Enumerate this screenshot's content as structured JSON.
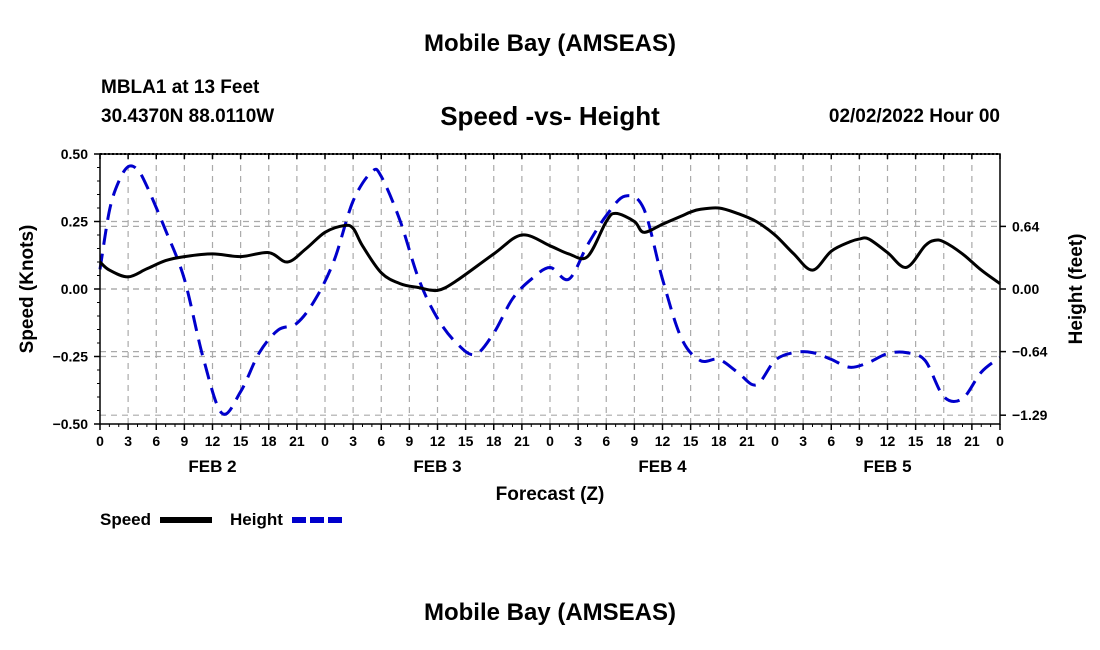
{
  "header": {
    "title": "Mobile Bay (AMSEAS)",
    "station": "MBLA1 at 13 Feet",
    "coords": "30.4370N  88.0110W",
    "subtitle": "Speed -vs- Height",
    "issued": "02/02/2022 Hour 00"
  },
  "footer": {
    "title": "Mobile Bay (AMSEAS)"
  },
  "chart_data": {
    "type": "line",
    "xlabel": "Forecast (Z)",
    "ylabel": "Speed (Knots)",
    "y2label": "Height (feet)",
    "xlim": [
      0,
      96
    ],
    "ylim": [
      -0.5,
      0.5
    ],
    "y2lim": [
      -1.38,
      1.38
    ],
    "x_ticks": [
      0,
      3,
      6,
      9,
      12,
      15,
      18,
      21,
      24,
      27,
      30,
      33,
      36,
      39,
      42,
      45,
      48,
      51,
      54,
      57,
      60,
      63,
      66,
      69,
      72,
      75,
      78,
      81,
      84,
      87,
      90,
      93,
      96
    ],
    "x_tick_labels": [
      "0",
      "3",
      "6",
      "9",
      "12",
      "15",
      "18",
      "21",
      "0",
      "3",
      "6",
      "9",
      "12",
      "15",
      "18",
      "21",
      "0",
      "3",
      "6",
      "9",
      "12",
      "15",
      "18",
      "21",
      "0",
      "3",
      "6",
      "9",
      "12",
      "15",
      "18",
      "21",
      "0"
    ],
    "day_labels": [
      {
        "x": 12,
        "label": "FEB 2"
      },
      {
        "x": 36,
        "label": "FEB 3"
      },
      {
        "x": 60,
        "label": "FEB 4"
      },
      {
        "x": 84,
        "label": "FEB 5"
      }
    ],
    "y_ticks": [
      0.5,
      0.25,
      0.0,
      -0.25,
      -0.5
    ],
    "y_tick_labels": [
      "0.50",
      "0.25",
      "0.00",
      "−0.25",
      "−0.50"
    ],
    "y2_ticks": [
      0.64,
      0.0,
      -0.64,
      -1.29
    ],
    "y2_tick_labels": [
      "0.64",
      "0.00",
      "−0.64",
      "−1.29"
    ],
    "legend": [
      {
        "name": "Speed",
        "color": "#000000",
        "dash": "solid"
      },
      {
        "name": "Height",
        "color": "#0000cc",
        "dash": "dashed"
      }
    ],
    "series": [
      {
        "name": "Speed",
        "axis": "left",
        "color": "#000000",
        "x": [
          0,
          1,
          3,
          5,
          7,
          9,
          12,
          15,
          18,
          20,
          22,
          24,
          26,
          27,
          28,
          30,
          32,
          34,
          36,
          38,
          42,
          45,
          48,
          50,
          52,
          54,
          55,
          57,
          58,
          60,
          62,
          63,
          64,
          66,
          68,
          70,
          72,
          74,
          76,
          78,
          80,
          81,
          82,
          84,
          86,
          88,
          89,
          90,
          92,
          94,
          96
        ],
        "y": [
          0.1,
          0.07,
          0.045,
          0.075,
          0.105,
          0.12,
          0.13,
          0.12,
          0.135,
          0.1,
          0.15,
          0.21,
          0.235,
          0.225,
          0.16,
          0.06,
          0.02,
          0.005,
          -0.005,
          0.03,
          0.13,
          0.2,
          0.16,
          0.13,
          0.12,
          0.25,
          0.28,
          0.25,
          0.21,
          0.24,
          0.27,
          0.285,
          0.295,
          0.3,
          0.28,
          0.25,
          0.2,
          0.13,
          0.07,
          0.14,
          0.175,
          0.185,
          0.185,
          0.135,
          0.08,
          0.16,
          0.18,
          0.175,
          0.13,
          0.07,
          0.02
        ]
      },
      {
        "name": "Height",
        "axis": "right",
        "color": "#0000cc",
        "x": [
          0,
          1,
          2,
          3,
          4,
          5,
          7,
          9,
          11,
          13,
          15,
          17,
          19,
          21,
          23,
          25,
          27,
          29,
          30,
          32,
          34,
          36,
          38,
          40,
          42,
          44,
          46,
          48,
          50,
          52,
          54,
          56,
          58,
          60,
          62,
          64,
          66,
          68,
          70,
          72,
          74,
          76,
          78,
          80,
          82,
          84,
          86,
          88,
          90,
          92,
          94,
          96
        ],
        "y": [
          0.2,
          0.8,
          1.1,
          1.25,
          1.22,
          1.05,
          0.6,
          0.1,
          -0.7,
          -1.27,
          -1.05,
          -0.65,
          -0.42,
          -0.35,
          -0.1,
          0.3,
          0.9,
          1.2,
          1.15,
          0.7,
          0.1,
          -0.3,
          -0.55,
          -0.67,
          -0.45,
          -0.1,
          0.1,
          0.22,
          0.1,
          0.45,
          0.75,
          0.95,
          0.82,
          0.1,
          -0.5,
          -0.73,
          -0.72,
          -0.85,
          -0.98,
          -0.73,
          -0.65,
          -0.65,
          -0.72,
          -0.8,
          -0.75,
          -0.66,
          -0.65,
          -0.73,
          -1.1,
          -1.12,
          -0.85,
          -0.7
        ]
      }
    ]
  }
}
